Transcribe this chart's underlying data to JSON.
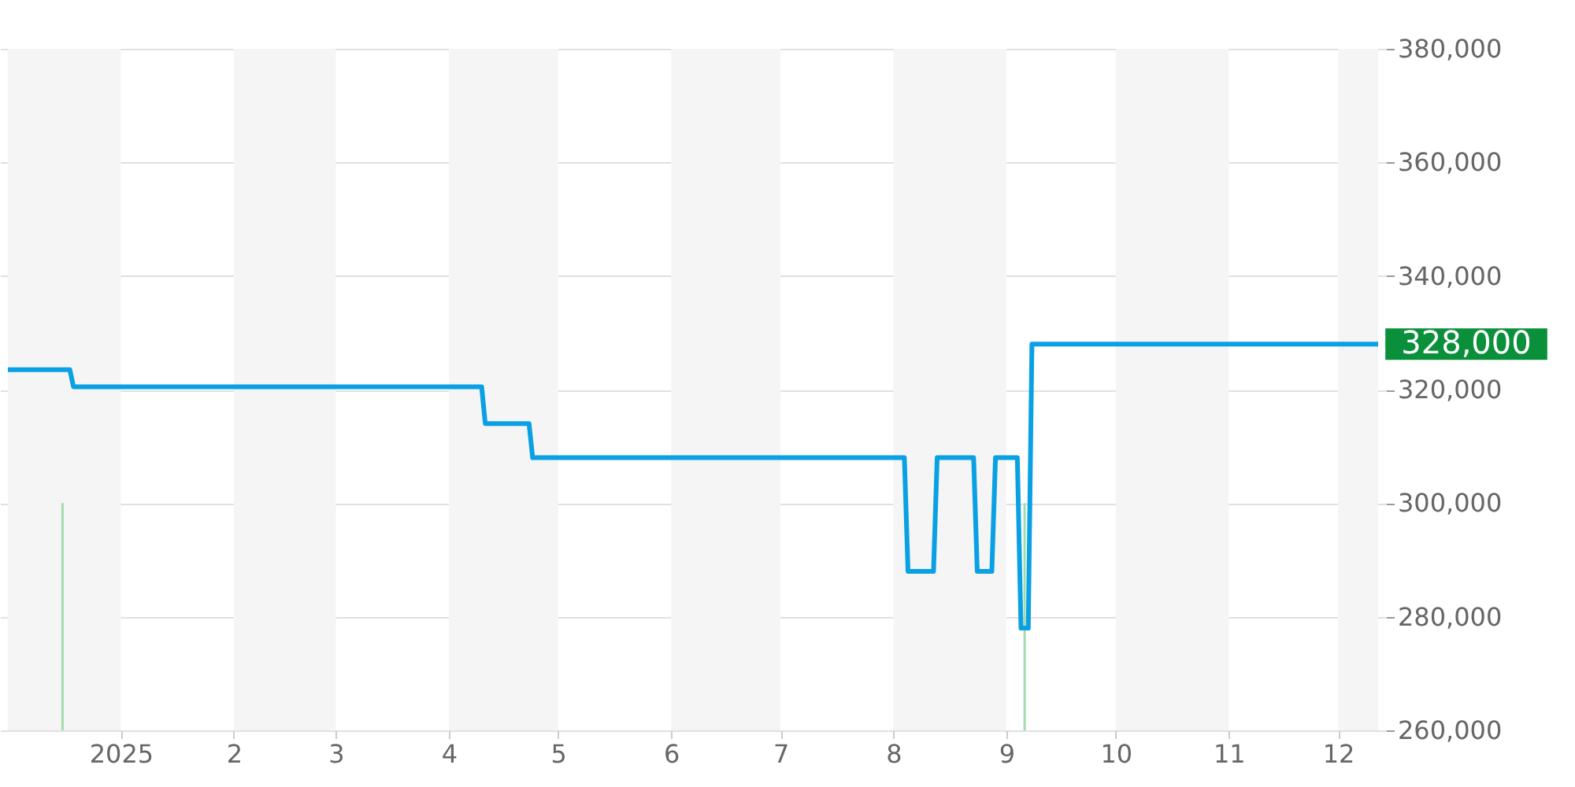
{
  "chart_data": {
    "type": "line",
    "xlim": [
      "2024-12-01",
      "2025-12-12"
    ],
    "xticks": [
      {
        "value": "2025-01-01",
        "label": "2025"
      },
      {
        "value": "2025-02-01",
        "label": "2"
      },
      {
        "value": "2025-03-01",
        "label": "3"
      },
      {
        "value": "2025-04-01",
        "label": "4"
      },
      {
        "value": "2025-05-01",
        "label": "5"
      },
      {
        "value": "2025-06-01",
        "label": "6"
      },
      {
        "value": "2025-07-01",
        "label": "7"
      },
      {
        "value": "2025-08-01",
        "label": "8"
      },
      {
        "value": "2025-09-01",
        "label": "9"
      },
      {
        "value": "2025-10-01",
        "label": "10"
      },
      {
        "value": "2025-11-01",
        "label": "11"
      },
      {
        "value": "2025-12-01",
        "label": "12"
      }
    ],
    "ylim": [
      260000,
      380000
    ],
    "yticks": [
      {
        "value": 260000,
        "label": "260,000"
      },
      {
        "value": 280000,
        "label": "280,000"
      },
      {
        "value": 300000,
        "label": "300,000"
      },
      {
        "value": 320000,
        "label": "320,000"
      },
      {
        "value": 340000,
        "label": "340,000"
      },
      {
        "value": 360000,
        "label": "360,000"
      },
      {
        "value": 380000,
        "label": "380,000"
      }
    ],
    "grid": "y",
    "line_style": "solid",
    "marker": "none",
    "series": [
      {
        "color": "#0aa0e4",
        "x": [
          "2024-12-01",
          "2024-12-18",
          "2024-12-19",
          "2025-04-10",
          "2025-04-11",
          "2025-04-23",
          "2025-04-24",
          "2025-08-04",
          "2025-08-05",
          "2025-08-12",
          "2025-08-13",
          "2025-08-23",
          "2025-08-24",
          "2025-08-28",
          "2025-08-29",
          "2025-09-04",
          "2025-09-05",
          "2025-09-07",
          "2025-09-08",
          "2025-12-12"
        ],
        "values": [
          323500,
          323500,
          320500,
          320500,
          314000,
          314000,
          308000,
          308000,
          288000,
          288000,
          308000,
          308000,
          288000,
          288000,
          308000,
          308000,
          278000,
          278000,
          328000,
          328000
        ]
      },
      {
        "type": "bar",
        "color": "#a3dcae",
        "x": [
          "2024-12-16",
          "2025-09-06"
        ],
        "values": [
          300000,
          300000
        ]
      }
    ],
    "bands": [
      {
        "axis": "x",
        "from": "2024-12-01",
        "to": "2025-01-01",
        "color": "#f5f5f5"
      },
      {
        "axis": "x",
        "from": "2025-02-01",
        "to": "2025-03-01",
        "color": "#f5f5f5"
      },
      {
        "axis": "x",
        "from": "2025-04-01",
        "to": "2025-05-01",
        "color": "#f5f5f5"
      },
      {
        "axis": "x",
        "from": "2025-06-01",
        "to": "2025-07-01",
        "color": "#f5f5f5"
      },
      {
        "axis": "x",
        "from": "2025-08-01",
        "to": "2025-09-01",
        "color": "#f5f5f5"
      },
      {
        "axis": "x",
        "from": "2025-10-01",
        "to": "2025-11-01",
        "color": "#f5f5f5"
      },
      {
        "axis": "x",
        "from": "2025-12-01",
        "to": "2025-12-12",
        "color": "#f5f5f5"
      }
    ],
    "annotations": [
      {
        "text": "328,000",
        "x": "2025-12-12",
        "y": 328000
      }
    ]
  }
}
